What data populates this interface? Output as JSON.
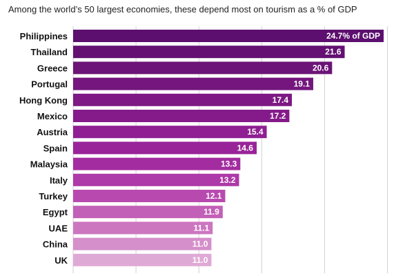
{
  "chart_data": {
    "type": "bar",
    "orientation": "horizontal",
    "title": "Among the world’s 50 largest economies, these depend most on tourism as a % of GDP",
    "categories": [
      "Philippines",
      "Thailand",
      "Greece",
      "Portugal",
      "Hong Kong",
      "Mexico",
      "Austria",
      "Spain",
      "Malaysia",
      "Italy",
      "Turkey",
      "Egypt",
      "UAE",
      "China",
      "UK"
    ],
    "values": [
      24.7,
      21.6,
      20.6,
      19.1,
      17.4,
      17.2,
      15.4,
      14.6,
      13.3,
      13.2,
      12.1,
      11.9,
      11.1,
      11.0,
      11.0
    ],
    "value_labels": [
      "24.7% of GDP",
      "21.6",
      "20.6",
      "19.1",
      "17.4",
      "17.2",
      "15.4",
      "14.6",
      "13.3",
      "13.2",
      "12.1",
      "11.9",
      "11.1",
      "11.0",
      "11.0"
    ],
    "xlim": [
      0,
      25
    ],
    "grid": true,
    "colors": [
      "#5c0f6e",
      "#641173",
      "#6c1478",
      "#74167d",
      "#7d1884",
      "#851b8a",
      "#8f1f92",
      "#992499",
      "#a32ca0",
      "#ae39a8",
      "#b84aaf",
      "#c25fb7",
      "#cc76c0",
      "#d58fca",
      "#dfa9d6"
    ]
  }
}
